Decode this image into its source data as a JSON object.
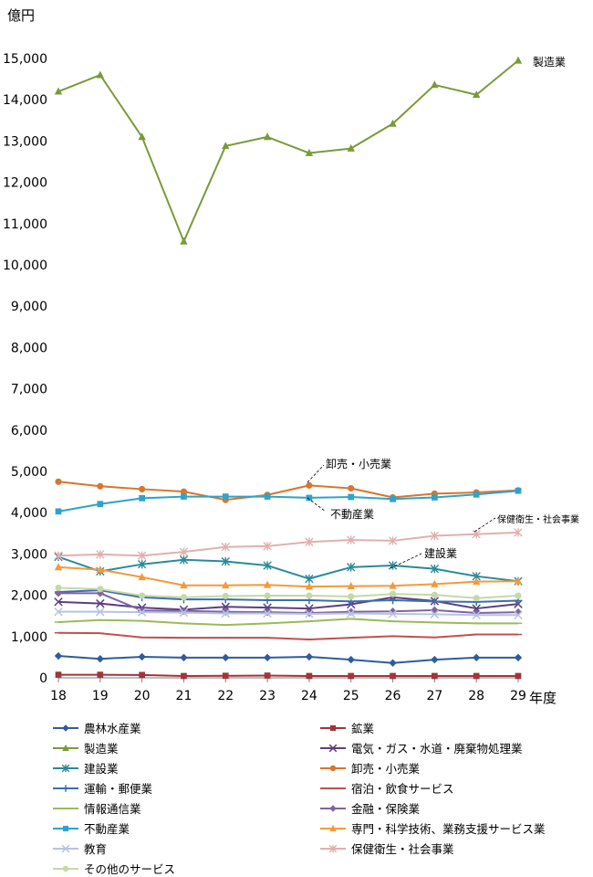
{
  "chart_data": {
    "type": "line",
    "ylabel": "億円",
    "xlabel": "年度",
    "x": [
      18,
      19,
      20,
      21,
      22,
      23,
      24,
      25,
      26,
      27,
      28,
      29
    ],
    "y_ticks": [
      "0",
      "1,000",
      "2,000",
      "3,000",
      "4,000",
      "5,000",
      "6,000",
      "7,000",
      "8,000",
      "9,000",
      "10,000",
      "11,000",
      "12,000",
      "13,000",
      "14,000",
      "15,000"
    ],
    "ylim": [
      0,
      15000
    ],
    "grid": false,
    "legend_position": "bottom",
    "series": [
      {
        "name": "農林水産業",
        "color": "#2E5C9E",
        "marker": "diamond",
        "values": [
          530,
          460,
          510,
          490,
          490,
          490,
          510,
          440,
          360,
          440,
          490,
          490
        ]
      },
      {
        "name": "鉱業",
        "color": "#A0353A",
        "marker": "square",
        "values": [
          75,
          75,
          70,
          45,
          50,
          55,
          45,
          45,
          45,
          45,
          45,
          45
        ]
      },
      {
        "name": "製造業",
        "color": "#7A9A3A",
        "marker": "triangle",
        "values": [
          14200,
          14600,
          13100,
          10570,
          12880,
          13100,
          12710,
          12820,
          13420,
          14360,
          14120,
          14950
        ]
      },
      {
        "name": "電気・ガス・水道・廃棄物処理業",
        "color": "#5C3F80",
        "marker": "x",
        "values": [
          1840,
          1800,
          1700,
          1650,
          1720,
          1700,
          1680,
          1780,
          1950,
          1860,
          1680,
          1790
        ]
      },
      {
        "name": "建設業",
        "color": "#2A8A9A",
        "marker": "star",
        "values": [
          2930,
          2580,
          2750,
          2860,
          2820,
          2720,
          2400,
          2680,
          2720,
          2640,
          2460,
          2340
        ]
      },
      {
        "name": "卸売・小売業",
        "color": "#D9752E",
        "marker": "circle",
        "values": [
          4750,
          4640,
          4570,
          4510,
          4310,
          4430,
          4660,
          4590,
          4370,
          4460,
          4490,
          4540
        ]
      },
      {
        "name": "運輸・郵便業",
        "color": "#3A6FB0",
        "marker": "plus",
        "values": [
          2080,
          2120,
          1950,
          1900,
          1900,
          1880,
          1880,
          1850,
          1880,
          1850,
          1840,
          1870
        ]
      },
      {
        "name": "宿泊・飲食サービス",
        "color": "#C0504D",
        "marker": "dash",
        "values": [
          1090,
          1080,
          980,
          970,
          970,
          970,
          930,
          970,
          1010,
          980,
          1050,
          1050
        ]
      },
      {
        "name": "情報通信業",
        "color": "#9BBB59",
        "marker": "dash",
        "values": [
          1350,
          1400,
          1380,
          1320,
          1280,
          1320,
          1370,
          1430,
          1370,
          1340,
          1320,
          1320
        ]
      },
      {
        "name": "金融・保険業",
        "color": "#8064A2",
        "marker": "diamond",
        "values": [
          2050,
          2050,
          1630,
          1620,
          1600,
          1590,
          1570,
          1600,
          1610,
          1640,
          1570,
          1590
        ]
      },
      {
        "name": "不動産業",
        "color": "#2FA3C9",
        "marker": "square",
        "values": [
          4030,
          4210,
          4350,
          4390,
          4390,
          4390,
          4360,
          4380,
          4330,
          4370,
          4440,
          4530
        ]
      },
      {
        "name": "専門・科学技術、業務支援サービス業",
        "color": "#F5993A",
        "marker": "triangle",
        "values": [
          2680,
          2620,
          2440,
          2240,
          2240,
          2250,
          2210,
          2220,
          2230,
          2270,
          2330,
          2340
        ]
      },
      {
        "name": "教育",
        "color": "#B8C3E3",
        "marker": "x",
        "values": [
          1600,
          1600,
          1590,
          1580,
          1560,
          1560,
          1550,
          1560,
          1550,
          1540,
          1520,
          1520
        ]
      },
      {
        "name": "保健衛生・社会事業",
        "color": "#E0B0B0",
        "marker": "star",
        "values": [
          2960,
          2990,
          2960,
          3050,
          3170,
          3190,
          3290,
          3340,
          3320,
          3440,
          3480,
          3520
        ]
      },
      {
        "name": "その他のサービス",
        "color": "#C5D9A8",
        "marker": "circle",
        "values": [
          2180,
          2150,
          1990,
          1950,
          1980,
          1990,
          1990,
          1970,
          2030,
          2010,
          1930,
          1990
        ]
      }
    ],
    "annotations": [
      {
        "text": "製造業"
      },
      {
        "text": "卸売・小売業"
      },
      {
        "text": "不動産業"
      },
      {
        "text": "保健衛生・社会事業"
      },
      {
        "text": "建設業"
      }
    ]
  }
}
